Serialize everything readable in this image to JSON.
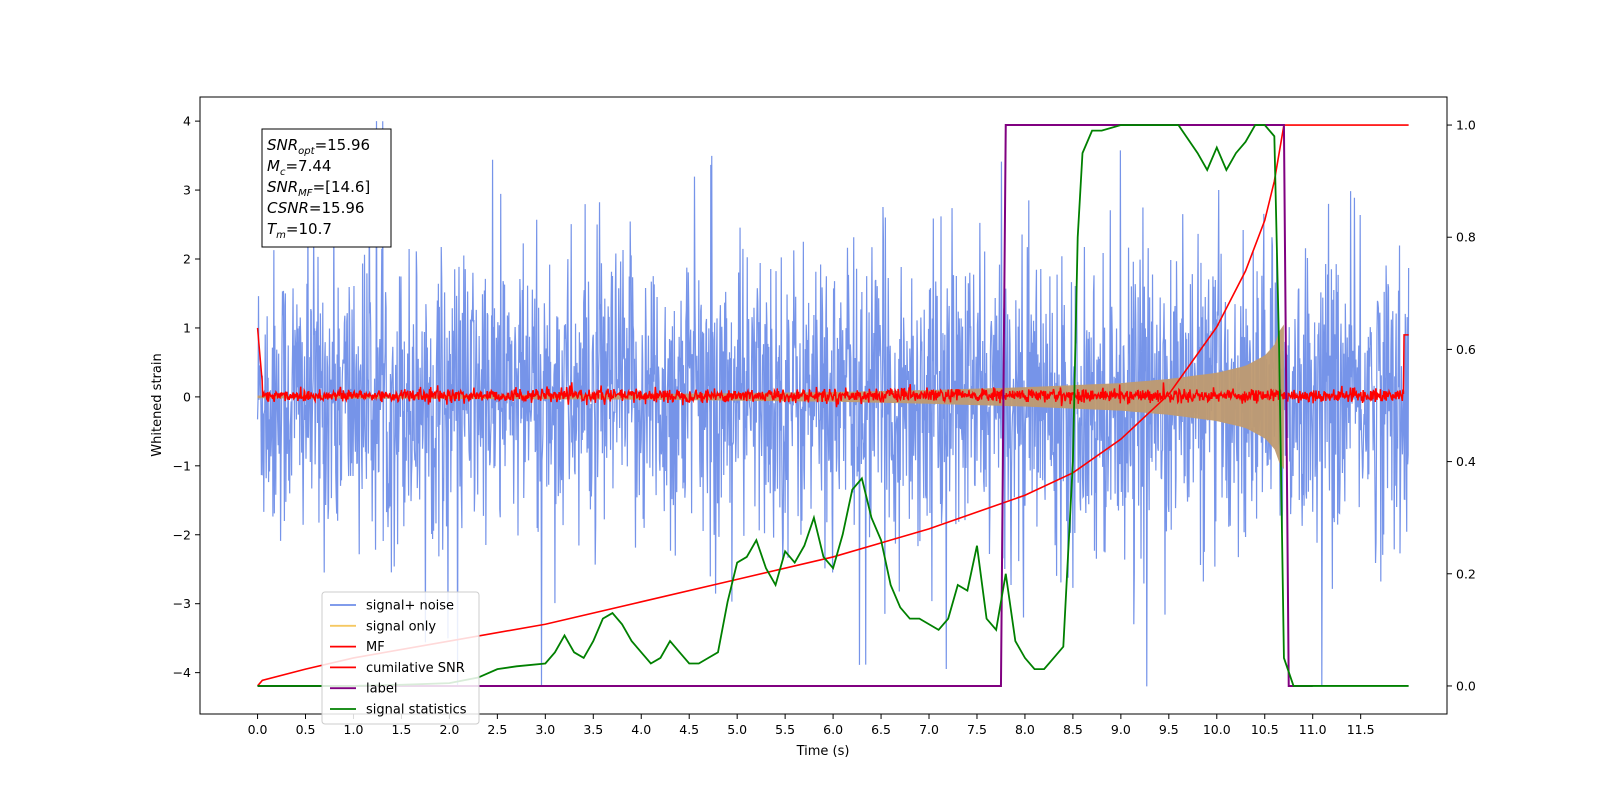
{
  "chart_data": {
    "type": "line",
    "xlabel": "Time (s)",
    "ylabel_left": "Whitened strain",
    "ylabel_right": "",
    "xlim": [
      -0.6,
      12.4
    ],
    "ylim_left": [
      -4.6,
      4.35
    ],
    "ylim_right": [
      -0.05,
      1.05
    ],
    "x_ticks": [
      "0.0",
      "0.5",
      "1.0",
      "1.5",
      "2.0",
      "2.5",
      "3.0",
      "3.5",
      "4.0",
      "4.5",
      "5.0",
      "5.5",
      "6.0",
      "6.5",
      "7.0",
      "7.5",
      "8.0",
      "8.5",
      "9.0",
      "9.5",
      "10.0",
      "10.5",
      "11.0",
      "11.5"
    ],
    "y_ticks_left": [
      "−4",
      "−3",
      "−2",
      "−1",
      "0",
      "1",
      "2",
      "3",
      "4"
    ],
    "y_ticks_right": [
      "0.0",
      "0.2",
      "0.4",
      "0.6",
      "0.8",
      "1.0"
    ],
    "grid": false,
    "legend_position": "lower-left",
    "colors": {
      "signal_noise": "#6f8ee8",
      "signal_only": "#f5c862",
      "mf": "#ff0000",
      "cumulative_snr": "#ff0000",
      "label": "#800080",
      "signal_statistics": "#008000",
      "overlap_fill": "#bf9a70"
    },
    "info_box": {
      "snr_opt": {
        "base": "SNR",
        "sub": "opt",
        "value": "=15.96"
      },
      "mc": {
        "base": "M",
        "sub": "c",
        "value": "=7.44"
      },
      "snr_mf": {
        "base": "SNR",
        "sub": "MF",
        "value": "=[14.6]"
      },
      "csnr": {
        "base": "CSNR",
        "sub": "",
        "value": "=15.96"
      },
      "tm": {
        "base": "T",
        "sub": "m",
        "value": "=10.7"
      }
    },
    "series": [
      {
        "name": "signal+ noise",
        "axis": "left",
        "description_range": [
          -2.6,
          2.6
        ],
        "x_range": [
          0.0,
          12.0
        ]
      },
      {
        "name": "signal only",
        "axis": "left",
        "chirp_envelope_x": [
          0.0,
          4.0,
          6.0,
          7.0,
          8.0,
          9.0,
          9.5,
          10.0,
          10.3,
          10.5,
          10.6,
          10.65,
          10.7
        ],
        "chirp_envelope_amp": [
          0.02,
          0.04,
          0.07,
          0.1,
          0.14,
          0.2,
          0.26,
          0.35,
          0.45,
          0.6,
          0.75,
          0.95,
          1.05
        ]
      },
      {
        "name": "MF",
        "axis": "left",
        "description_range": [
          -0.1,
          0.15
        ],
        "x_range": [
          0.0,
          12.0
        ]
      },
      {
        "name": "cumilative SNR",
        "axis": "right",
        "x": [
          0.0,
          0.05,
          0.5,
          1.0,
          2.0,
          3.0,
          4.0,
          5.0,
          6.0,
          7.0,
          8.0,
          8.5,
          9.0,
          9.5,
          10.0,
          10.3,
          10.5,
          10.6,
          10.7,
          12.0
        ],
        "y": [
          0.0,
          0.01,
          0.03,
          0.05,
          0.08,
          0.11,
          0.15,
          0.19,
          0.23,
          0.28,
          0.34,
          0.38,
          0.44,
          0.52,
          0.64,
          0.74,
          0.83,
          0.9,
          1.0,
          1.0
        ]
      },
      {
        "name": "label",
        "axis": "right",
        "x": [
          0.0,
          7.75,
          7.8,
          10.7,
          10.75,
          11.0
        ],
        "y": [
          0.0,
          0.0,
          1.0,
          1.0,
          0.0,
          0.0
        ]
      },
      {
        "name": "signal statistics",
        "axis": "right",
        "x": [
          0.0,
          0.5,
          1.0,
          1.5,
          2.0,
          2.3,
          2.5,
          2.7,
          3.0,
          3.1,
          3.2,
          3.3,
          3.4,
          3.5,
          3.6,
          3.7,
          3.8,
          3.9,
          4.0,
          4.1,
          4.2,
          4.3,
          4.4,
          4.5,
          4.6,
          4.7,
          4.8,
          4.9,
          5.0,
          5.1,
          5.2,
          5.3,
          5.4,
          5.5,
          5.6,
          5.7,
          5.8,
          5.9,
          6.0,
          6.1,
          6.2,
          6.3,
          6.4,
          6.5,
          6.6,
          6.7,
          6.8,
          6.9,
          7.0,
          7.1,
          7.2,
          7.3,
          7.4,
          7.5,
          7.6,
          7.7,
          7.8,
          7.9,
          8.0,
          8.1,
          8.2,
          8.3,
          8.4,
          8.5,
          8.55,
          8.6,
          8.7,
          8.8,
          9.0,
          9.2,
          9.4,
          9.6,
          9.8,
          9.9,
          10.0,
          10.1,
          10.2,
          10.3,
          10.4,
          10.5,
          10.6,
          10.65,
          10.7,
          10.8,
          11.0,
          12.0
        ],
        "y": [
          0.0,
          0.0,
          0.0,
          0.002,
          0.005,
          0.015,
          0.03,
          0.035,
          0.04,
          0.06,
          0.09,
          0.06,
          0.05,
          0.08,
          0.12,
          0.13,
          0.11,
          0.08,
          0.06,
          0.04,
          0.05,
          0.08,
          0.06,
          0.04,
          0.04,
          0.05,
          0.06,
          0.15,
          0.22,
          0.23,
          0.26,
          0.21,
          0.18,
          0.24,
          0.22,
          0.25,
          0.3,
          0.23,
          0.21,
          0.27,
          0.35,
          0.37,
          0.3,
          0.26,
          0.18,
          0.14,
          0.12,
          0.12,
          0.11,
          0.1,
          0.12,
          0.18,
          0.17,
          0.25,
          0.12,
          0.1,
          0.2,
          0.08,
          0.05,
          0.03,
          0.03,
          0.05,
          0.07,
          0.4,
          0.8,
          0.95,
          0.99,
          0.99,
          1.0,
          1.0,
          1.0,
          1.0,
          0.95,
          0.92,
          0.96,
          0.92,
          0.95,
          0.97,
          1.0,
          1.0,
          0.98,
          0.6,
          0.05,
          0.0,
          0.0,
          0.0
        ]
      }
    ]
  },
  "legend": {
    "items": [
      {
        "label": "signal+ noise",
        "color": "#6f8ee8"
      },
      {
        "label": "signal only",
        "color": "#f5c862"
      },
      {
        "label": "MF",
        "color": "#ff0000"
      },
      {
        "label": "cumilative SNR",
        "color": "#ff0000"
      },
      {
        "label": "label",
        "color": "#800080"
      },
      {
        "label": "signal statistics",
        "color": "#008000"
      }
    ]
  }
}
